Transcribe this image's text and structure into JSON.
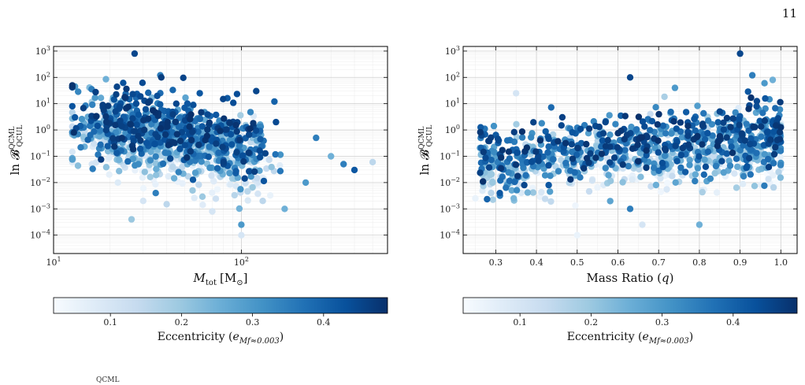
{
  "page": {
    "number": "11",
    "footer_fragment": "QCML"
  },
  "colormap": {
    "name": "Blues",
    "low": "#f7fbff",
    "high": "#08306b"
  },
  "chart_data": [
    {
      "type": "scatter",
      "title": "",
      "ylabel": "ln B^QCML_QCUL",
      "ylabel_main": "ln 𝓑",
      "ylabel_sup": "QCML",
      "ylabel_sub": "QCUL",
      "xlabel": "M_tot [M⊙]",
      "xlabel_main": "M",
      "xlabel_sub": "tot",
      "xlabel_unit": "[M",
      "xlabel_unit_sub": "⊙",
      "xlabel_unit_close": "]",
      "xscale": "log",
      "yscale": "log",
      "xlim": [
        10,
        600
      ],
      "ylim": [
        2e-05,
        1500
      ],
      "xticks": [
        {
          "value": 10,
          "label": "10",
          "sup": "1"
        },
        {
          "value": 100,
          "label": "10",
          "sup": "2"
        }
      ],
      "yticks": [
        {
          "value": 0.0001,
          "label": "10",
          "sup": "−4"
        },
        {
          "value": 0.001,
          "label": "10",
          "sup": "−3"
        },
        {
          "value": 0.01,
          "label": "10",
          "sup": "−2"
        },
        {
          "value": 0.1,
          "label": "10",
          "sup": "−1"
        },
        {
          "value": 1,
          "label": "10",
          "sup": "0"
        },
        {
          "value": 10,
          "label": "10",
          "sup": "1"
        },
        {
          "value": 100,
          "label": "10",
          "sup": "2"
        },
        {
          "value": 1000,
          "label": "10",
          "sup": "3"
        }
      ],
      "grid": true,
      "color_variable": "eccentricity",
      "points": [
        {
          "x": 27,
          "y": 800,
          "c": 0.45
        },
        {
          "x": 13,
          "y": 45,
          "c": 0.3
        },
        {
          "x": 19,
          "y": 85,
          "c": 0.25
        },
        {
          "x": 37,
          "y": 120,
          "c": 0.35
        },
        {
          "x": 13,
          "y": 3,
          "c": 0.42
        },
        {
          "x": 14,
          "y": 1.2,
          "c": 0.35
        },
        {
          "x": 18,
          "y": 0.2,
          "c": 0.3
        },
        {
          "x": 35,
          "y": 0.004,
          "c": 0.35
        },
        {
          "x": 26,
          "y": 0.0004,
          "c": 0.2
        },
        {
          "x": 100,
          "y": 0.00025,
          "c": 0.3
        },
        {
          "x": 170,
          "y": 0.001,
          "c": 0.25
        },
        {
          "x": 100,
          "y": 0.0001,
          "c": 0.1
        },
        {
          "x": 120,
          "y": 30,
          "c": 0.45
        },
        {
          "x": 150,
          "y": 12,
          "c": 0.4
        },
        {
          "x": 80,
          "y": 15,
          "c": 0.45
        },
        {
          "x": 60,
          "y": 25,
          "c": 0.42
        },
        {
          "x": 45,
          "y": 10,
          "c": 0.45
        },
        {
          "x": 250,
          "y": 0.5,
          "c": 0.35
        },
        {
          "x": 350,
          "y": 0.05,
          "c": 0.35
        },
        {
          "x": 400,
          "y": 0.03,
          "c": 0.42
        },
        {
          "x": 300,
          "y": 0.1,
          "c": 0.25
        },
        {
          "x": 220,
          "y": 0.01,
          "c": 0.3
        },
        {
          "x": 500,
          "y": 0.06,
          "c": 0.15
        },
        {
          "x": 55,
          "y": 0.005,
          "c": 0.2
        },
        {
          "x": 40,
          "y": 0.0015,
          "c": 0.15
        },
        {
          "x": 30,
          "y": 0.002,
          "c": 0.1
        },
        {
          "x": 22,
          "y": 0.01,
          "c": 0.08
        },
        {
          "x": 16,
          "y": 0.05,
          "c": 0.1
        },
        {
          "x": 70,
          "y": 0.0008,
          "c": 0.1
        },
        {
          "x": 130,
          "y": 0.002,
          "c": 0.15
        }
      ],
      "point_cloud_seed": 7,
      "point_cloud_count": 1100,
      "colorbar": {
        "label": "Eccentricity (e_Mf≈0.003)",
        "label_main": "Eccentricity (",
        "label_var": "e",
        "label_sub": "Mf≈0.003",
        "label_close": ")",
        "range": [
          0.02,
          0.49
        ],
        "ticks": [
          {
            "value": 0.1,
            "label": "0.1"
          },
          {
            "value": 0.2,
            "label": "0.2"
          },
          {
            "value": 0.3,
            "label": "0.3"
          },
          {
            "value": 0.4,
            "label": "0.4"
          }
        ]
      }
    },
    {
      "type": "scatter",
      "title": "",
      "ylabel": "ln B^QCML_QCUL",
      "ylabel_main": "ln 𝓑",
      "ylabel_sup": "QCML",
      "ylabel_sub": "QCUL",
      "xlabel": "Mass Ratio (q)",
      "xlabel_main": "Mass Ratio (",
      "xlabel_var": "q",
      "xlabel_close": ")",
      "xscale": "linear",
      "yscale": "log",
      "xlim": [
        0.22,
        1.04
      ],
      "ylim": [
        2e-05,
        1500
      ],
      "xticks": [
        {
          "value": 0.3,
          "label": "0.3"
        },
        {
          "value": 0.4,
          "label": "0.4"
        },
        {
          "value": 0.5,
          "label": "0.5"
        },
        {
          "value": 0.6,
          "label": "0.6"
        },
        {
          "value": 0.7,
          "label": "0.7"
        },
        {
          "value": 0.8,
          "label": "0.8"
        },
        {
          "value": 0.9,
          "label": "0.9"
        },
        {
          "value": 1.0,
          "label": "1.0"
        }
      ],
      "yticks": [
        {
          "value": 0.0001,
          "label": "10",
          "sup": "−4"
        },
        {
          "value": 0.001,
          "label": "10",
          "sup": "−3"
        },
        {
          "value": 0.01,
          "label": "10",
          "sup": "−2"
        },
        {
          "value": 0.1,
          "label": "10",
          "sup": "−1"
        },
        {
          "value": 1,
          "label": "10",
          "sup": "0"
        },
        {
          "value": 10,
          "label": "10",
          "sup": "1"
        },
        {
          "value": 100,
          "label": "10",
          "sup": "2"
        },
        {
          "value": 1000,
          "label": "10",
          "sup": "3"
        }
      ],
      "grid": true,
      "color_variable": "eccentricity",
      "points": [
        {
          "x": 0.9,
          "y": 800,
          "c": 0.45
        },
        {
          "x": 0.63,
          "y": 100,
          "c": 0.45
        },
        {
          "x": 0.93,
          "y": 120,
          "c": 0.35
        },
        {
          "x": 0.98,
          "y": 80,
          "c": 0.25
        },
        {
          "x": 0.96,
          "y": 60,
          "c": 0.3
        },
        {
          "x": 0.74,
          "y": 40,
          "c": 0.3
        },
        {
          "x": 0.27,
          "y": 0.2,
          "c": 0.35
        },
        {
          "x": 0.31,
          "y": 0.004,
          "c": 0.42
        },
        {
          "x": 0.37,
          "y": 0.008,
          "c": 0.45
        },
        {
          "x": 0.43,
          "y": 0.008,
          "c": 0.42
        },
        {
          "x": 0.63,
          "y": 0.001,
          "c": 0.35
        },
        {
          "x": 0.8,
          "y": 0.00025,
          "c": 0.25
        },
        {
          "x": 0.5,
          "y": 0.0001,
          "c": 0.05
        },
        {
          "x": 0.66,
          "y": 0.00025,
          "c": 0.1
        },
        {
          "x": 0.35,
          "y": 25,
          "c": 0.1
        },
        {
          "x": 0.25,
          "y": 0.0025,
          "c": 0.05
        },
        {
          "x": 0.97,
          "y": 0.3,
          "c": 0.45
        },
        {
          "x": 0.99,
          "y": 2,
          "c": 0.45
        },
        {
          "x": 0.85,
          "y": 5,
          "c": 0.45
        }
      ],
      "point_cloud_seed": 11,
      "point_cloud_count": 1100,
      "colorbar": {
        "label": "Eccentricity (e_Mf≈0.003)",
        "label_main": "Eccentricity (",
        "label_var": "e",
        "label_sub": "Mf≈0.003",
        "label_close": ")",
        "range": [
          0.02,
          0.49
        ],
        "ticks": [
          {
            "value": 0.1,
            "label": "0.1"
          },
          {
            "value": 0.2,
            "label": "0.2"
          },
          {
            "value": 0.3,
            "label": "0.3"
          },
          {
            "value": 0.4,
            "label": "0.4"
          }
        ]
      }
    }
  ]
}
